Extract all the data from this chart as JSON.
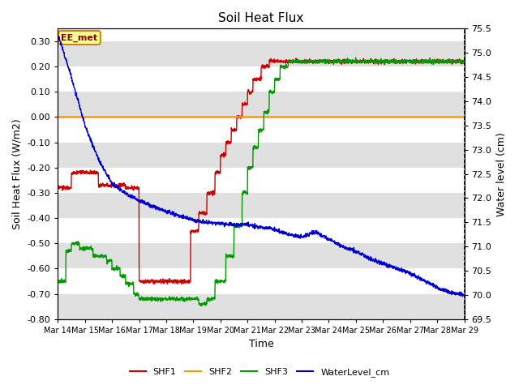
{
  "title": "Soil Heat Flux",
  "ylabel_left": "Soil Heat Flux (W/m2)",
  "ylabel_right": "Water level (cm)",
  "xlabel": "Time",
  "ylim_left": [
    -0.8,
    0.35
  ],
  "ylim_right": [
    69.5,
    75.5
  ],
  "xtick_labels": [
    "Mar 14",
    "Mar 15",
    "Mar 16",
    "Mar 17",
    "Mar 18",
    "Mar 19",
    "Mar 20",
    "Mar 21",
    "Mar 22",
    "Mar 23",
    "Mar 24",
    "Mar 25",
    "Mar 26",
    "Mar 27",
    "Mar 28",
    "Mar 29"
  ],
  "yticks_left": [
    -0.8,
    -0.7,
    -0.6,
    -0.5,
    -0.4,
    -0.3,
    -0.2,
    -0.1,
    0.0,
    0.1,
    0.2,
    0.3
  ],
  "yticks_right": [
    69.5,
    70.0,
    70.5,
    71.0,
    71.5,
    72.0,
    72.5,
    73.0,
    73.5,
    74.0,
    74.5,
    75.0,
    75.5
  ],
  "annotation_text": "EE_met",
  "colors": {
    "SHF1": "#cc0000",
    "SHF2": "#ff9900",
    "SHF3": "#009900",
    "WaterLevel": "#0000cc",
    "background_stripe": "#e0e0e0"
  },
  "legend_entries": [
    "SHF1",
    "SHF2",
    "SHF3",
    "WaterLevel_cm"
  ]
}
